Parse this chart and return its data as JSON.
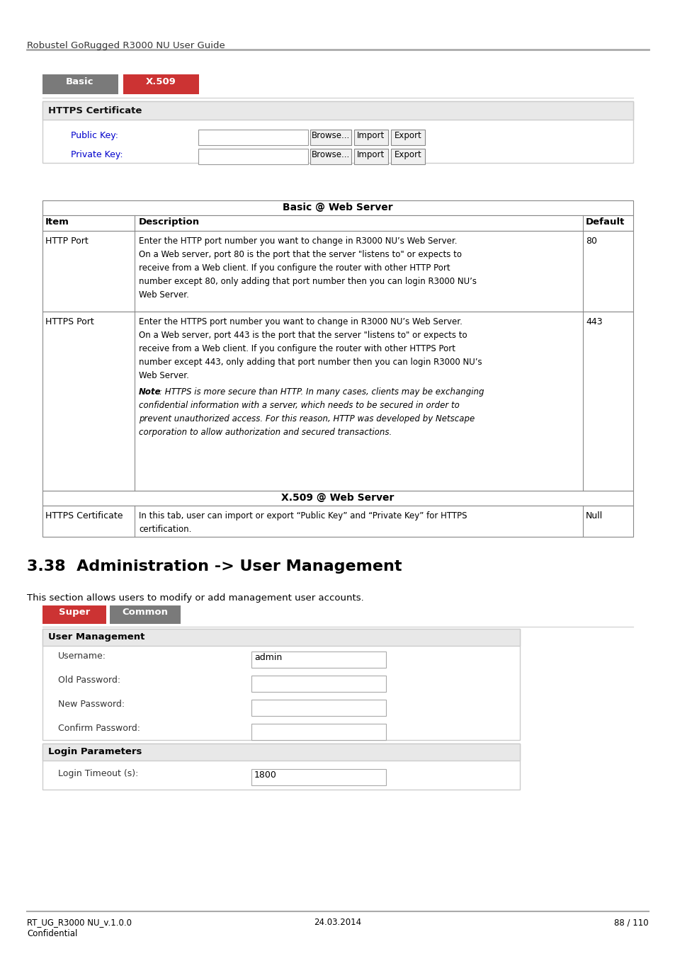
{
  "header_text": "Robustel GoRugged R3000 NU User Guide",
  "tab1_label": "Basic",
  "tab2_label": "X.509",
  "tab1_color": "#7a7a7a",
  "tab2_color": "#cc3333",
  "tab_text_color": "#ffffff",
  "https_cert_header": "HTTPS Certificate",
  "public_key_label": "Public Key:",
  "private_key_label": "Private Key:",
  "browse_label": "Browse...",
  "import_label": "Import",
  "export_label": "Export",
  "table_title": "Basic @ Web Server",
  "table_headers": [
    "Item",
    "Description",
    "Default"
  ],
  "http_port_item": "HTTP Port",
  "http_port_default": "80",
  "http_port_desc_lines": [
    "Enter the HTTP port number you want to change in R3000 NU’s Web Server.",
    "On a Web server, port 80 is the port that the server \"listens to\" or expects to",
    "receive from a Web client. If you configure the router with other HTTP Port",
    "number except 80, only adding that port number then you can login R3000 NU’s",
    "Web Server."
  ],
  "https_port_item": "HTTPS Port",
  "https_port_default": "443",
  "https_port_desc_lines": [
    "Enter the HTTPS port number you want to change in R3000 NU’s Web Server.",
    "On a Web server, port 443 is the port that the server \"listens to\" or expects to",
    "receive from a Web client. If you configure the router with other HTTPS Port",
    "number except 443, only adding that port number then you can login R3000 NU’s",
    "Web Server."
  ],
  "https_port_note_bold": "Note",
  "https_port_note_lines": [
    ": HTTPS is more secure than HTTP. In many cases, clients may be exchanging",
    "confidential information with a server, which needs to be secured in order to",
    "prevent unauthorized access. For this reason, HTTP was developed by Netscape",
    "corporation to allow authorization and secured transactions."
  ],
  "x509_section_title": "X.509 @ Web Server",
  "https_cert_item": "HTTPS Certificate",
  "https_cert_desc_lines": [
    "In this tab, user can import or export “Public Key” and “Private Key” for HTTPS",
    "certification."
  ],
  "https_cert_default": "Null",
  "section_heading": "3.38  Administration -> User Management",
  "section_body": "This section allows users to modify or add management user accounts.",
  "super_label": "Super",
  "common_label": "Common",
  "super_color": "#cc3333",
  "common_color": "#7a7a7a",
  "tab_text_color2": "#ffffff",
  "user_mgmt_header": "User Management",
  "username_label": "Username:",
  "username_value": "admin",
  "old_pass_label": "Old Password:",
  "new_pass_label": "New Password:",
  "confirm_pass_label": "Confirm Password:",
  "login_params_header": "Login Parameters",
  "login_timeout_label": "Login Timeout (s):",
  "login_timeout_value": "1800",
  "footer_left1": "RT_UG_R3000 NU_v.1.0.0",
  "footer_left2": "Confidential",
  "footer_center": "24.03.2014",
  "footer_right": "88 / 110",
  "bg_color": "#ffffff",
  "label_color_blue": "#0000cc",
  "label_color_dark": "#333333",
  "table_bg_gray": "#f0f0f0",
  "border_color": "#bbbbbb",
  "header_section_bg": "#e8e8e8"
}
